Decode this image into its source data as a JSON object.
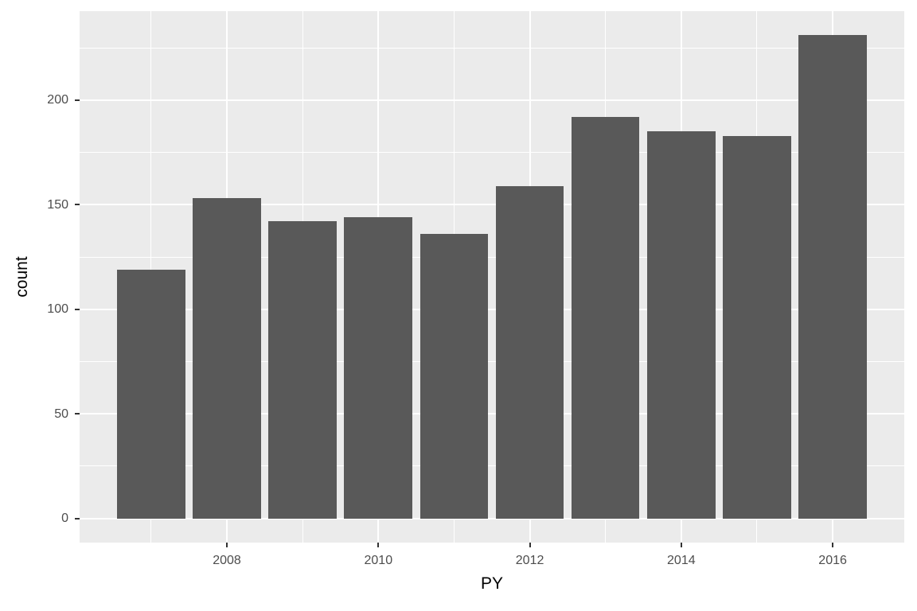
{
  "chart_data": {
    "type": "bar",
    "title": "",
    "xlabel": "PY",
    "ylabel": "count",
    "x": [
      2007,
      2008,
      2009,
      2010,
      2011,
      2012,
      2013,
      2014,
      2015,
      2016
    ],
    "values": [
      119,
      153,
      142,
      144,
      136,
      159,
      192,
      185,
      183,
      231
    ],
    "bar_width_x_units": 0.9,
    "x_ticks_major": [
      2008,
      2010,
      2012,
      2014,
      2016
    ],
    "x_ticks_minor": [
      2007,
      2009,
      2011,
      2013,
      2015
    ],
    "y_ticks_major": [
      0,
      50,
      100,
      150,
      200
    ],
    "y_ticks_minor": [
      25,
      75,
      125,
      175,
      225
    ],
    "x_domain": [
      2006.055,
      2016.945
    ],
    "y_domain": [
      -11.55,
      242.55
    ],
    "grid": true,
    "legend": "none",
    "colors": {
      "bar_fill": "#595959",
      "panel_background": "#EBEBEB",
      "gridline": "#FFFFFF",
      "tick_label": "#4D4D4D",
      "axis_title": "#000000",
      "tick_mark": "#333333",
      "figure_background": "#FFFFFF"
    }
  }
}
